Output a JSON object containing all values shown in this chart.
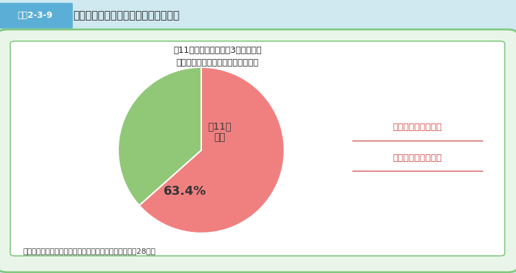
{
  "title_label": "夜11時以降に寝る中学3年生の割合\n【夜型生活による睡眠時間の不足】",
  "pie_values": [
    63.4,
    36.6
  ],
  "pie_colors": [
    "#F08080",
    "#90C878"
  ],
  "pie_label": "夜11時\n以降",
  "pie_pct_label": "63.4%",
  "annotation_text": "中学生の６割以上が\n夜１１時以降に就寝",
  "source_text": "（出典）文部科学省「全国学力・学習状況調査」（平成28年）",
  "header_bg": "#A8D8EA",
  "header_label_bg": "#5BAFD6",
  "header_text": "図表2-3-9",
  "header_title": "夜１１時以降に寝る中学３年生の割合",
  "panel_bg": "#EAF5EA",
  "panel_border": "#7EC87E",
  "inner_bg": "#FFFFFF",
  "fig_bg": "#D0E8F0"
}
